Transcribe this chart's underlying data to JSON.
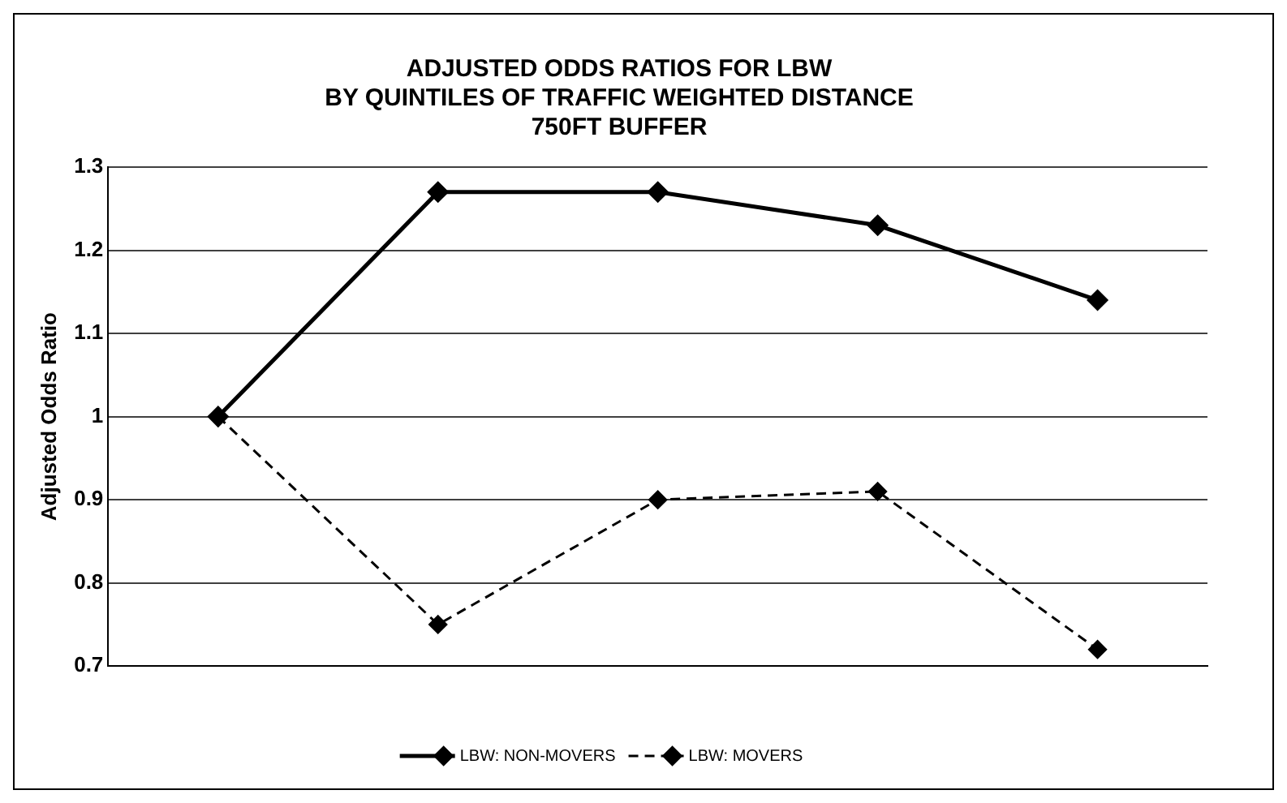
{
  "chart_data": {
    "type": "line",
    "title": "ADJUSTED ODDS RATIOS FOR LBW\nBY QUINTILES OF TRAFFIC WEIGHTED DISTANCE\n750FT BUFFER",
    "ylabel": "Adjusted Odds Ratio",
    "categories": [
      null,
      null,
      null,
      null,
      null
    ],
    "series": [
      {
        "name": "LBW: NON-MOVERS",
        "color": "#000000",
        "line_style": "solid",
        "values": [
          1,
          1.27,
          1.27,
          1.23,
          1.14
        ]
      },
      {
        "name": "LBW: MOVERS",
        "color": "#000000",
        "line_style": "dashed",
        "values": [
          1,
          0.75,
          0.9,
          0.91,
          0.72
        ]
      }
    ],
    "ylim": [
      0.7,
      1.3
    ],
    "yticks": [
      0.7,
      0.8,
      0.9,
      1,
      1.1,
      1.2,
      1.3
    ],
    "grid": "y",
    "legend": "bottom",
    "marker": "diamond"
  }
}
